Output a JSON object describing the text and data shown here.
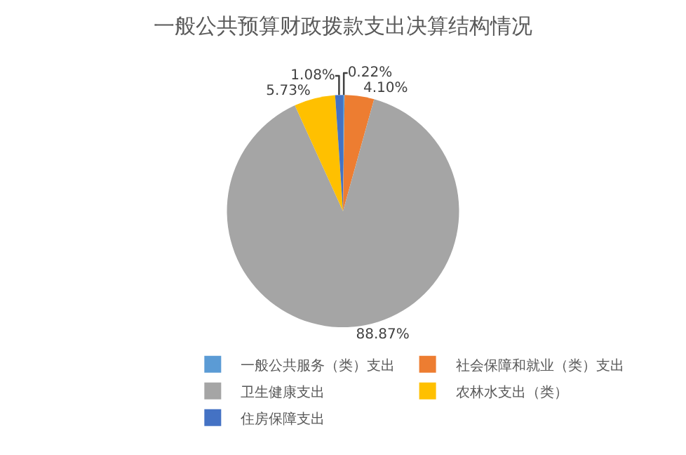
{
  "chart_data": {
    "type": "pie",
    "title": "一般公共预算财政拨款支出决算结构情况",
    "categories": [
      "一般公共服务（类）支出",
      "社会保障和就业（类）支出",
      "卫生健康支出",
      "农林水支出（类）",
      "住房保障支出"
    ],
    "values": [
      0.22,
      4.1,
      88.87,
      5.73,
      1.08
    ],
    "colors": [
      "#5b9bd5",
      "#ed7d31",
      "#a5a5a5",
      "#ffc000",
      "#4472c4"
    ],
    "value_labels": [
      "0.22%",
      "4.10%",
      "88.87%",
      "5.73%",
      "1.08%"
    ],
    "legend": "bottom"
  }
}
